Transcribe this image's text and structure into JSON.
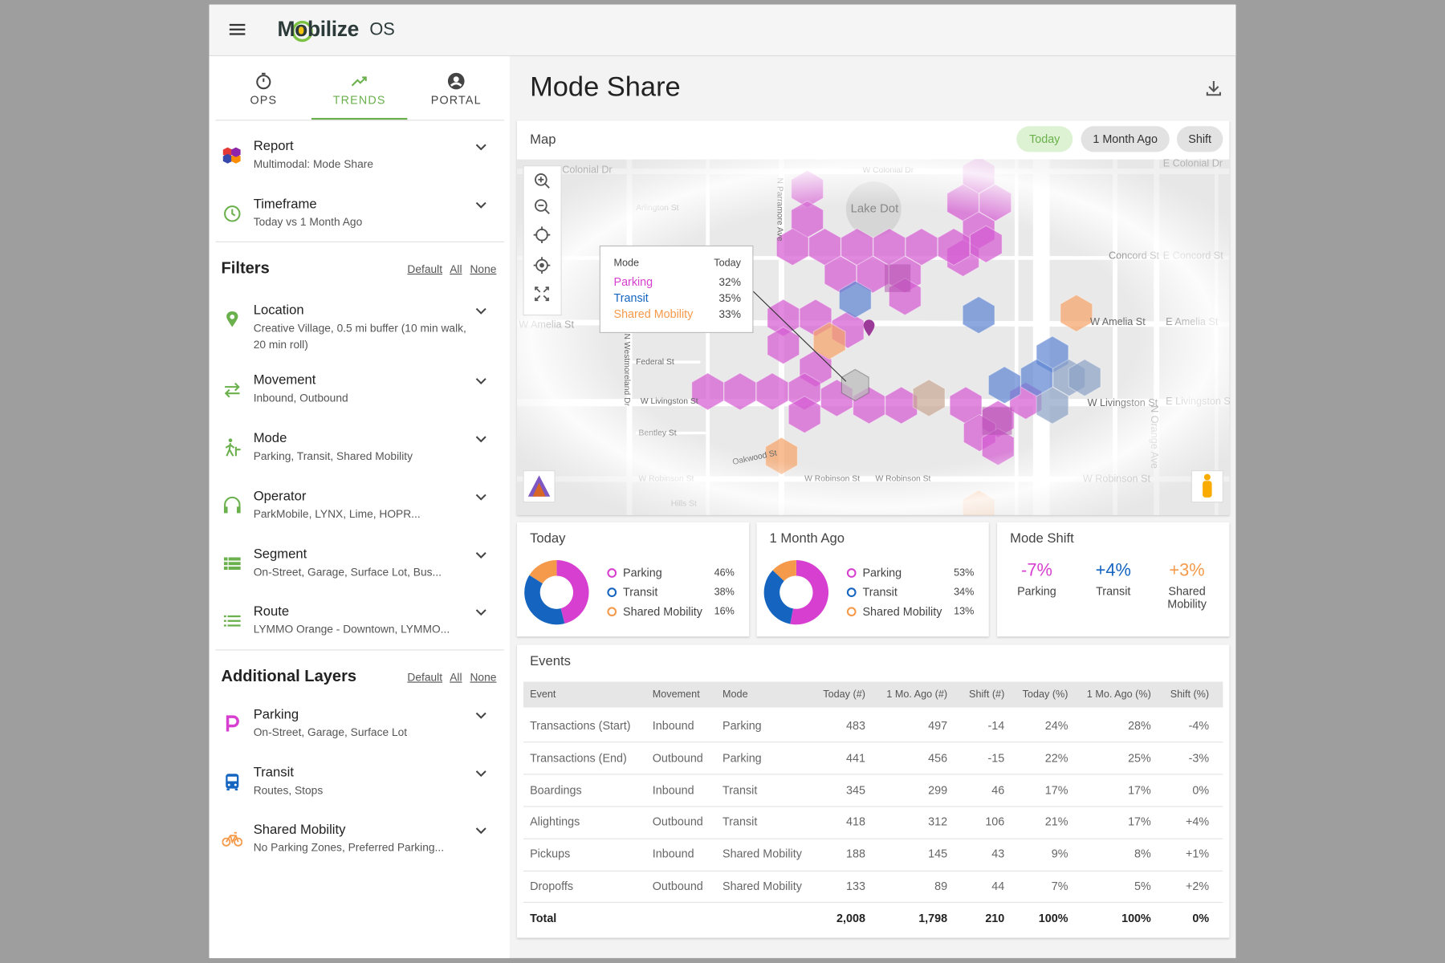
{
  "header": {
    "brand": "Mobilize",
    "suffix": "OS"
  },
  "tabs": [
    "OPS",
    "TRENDS",
    "PORTAL"
  ],
  "sidebar": {
    "report": [
      {
        "title": "Report",
        "subtitle": "Multimodal: Mode Share"
      },
      {
        "title": "Timeframe",
        "subtitle": "Today vs 1 Month Ago"
      }
    ],
    "filters": {
      "title": "Filters",
      "links": [
        "Default",
        "All",
        "None"
      ],
      "items": [
        {
          "title": "Location",
          "subtitle": "Creative Village, 0.5 mi buffer (10 min walk, 20 min roll)"
        },
        {
          "title": "Movement",
          "subtitle": "Inbound, Outbound"
        },
        {
          "title": "Mode",
          "subtitle": "Parking, Transit, Shared Mobility"
        },
        {
          "title": "Operator",
          "subtitle": "ParkMobile, LYNX, Lime, HOPR..."
        },
        {
          "title": "Segment",
          "subtitle": "On-Street, Garage, Surface Lot, Bus..."
        },
        {
          "title": "Route",
          "subtitle": "LYMMO Orange - Downtown, LYMMO..."
        }
      ]
    },
    "layers": {
      "title": "Additional Layers",
      "links": [
        "Default",
        "All",
        "None"
      ],
      "items": [
        {
          "title": "Parking",
          "subtitle": "On-Street, Garage, Surface Lot"
        },
        {
          "title": "Transit",
          "subtitle": "Routes, Stops"
        },
        {
          "title": "Shared Mobility",
          "subtitle": "No Parking Zones, Preferred Parking..."
        }
      ]
    }
  },
  "main": {
    "title": "Mode Share",
    "map": {
      "title": "Map",
      "chips": [
        "Today",
        "1 Month Ago",
        "Shift"
      ],
      "labels": [
        "Colonial Dr",
        "W Colonial Dr",
        "E Colonial Dr",
        "Arlington St",
        "Lake Dot",
        "Concord St",
        "E Concord St",
        "W Amelia St",
        "W Amelia St",
        "E Amelia St",
        "Federal St",
        "W Livingston St",
        "W Livingston St",
        "E Livingston St",
        "Bentley St",
        "Oakwood St",
        "W Robinson St",
        "W Robinson St",
        "W Robinson St",
        "W Robinson St",
        "Hills St",
        "N Parramore Ave",
        "N Westmoreland Dr",
        "N Orange Ave"
      ],
      "tooltip": {
        "headers": [
          "Mode",
          "Today"
        ],
        "rows": [
          {
            "mode": "Parking",
            "value": "32%",
            "color": "#d63fcf"
          },
          {
            "mode": "Transit",
            "value": "35%",
            "color": "#1565c0"
          },
          {
            "mode": "Shared Mobility",
            "value": "33%",
            "color": "#f59a4a"
          }
        ]
      }
    },
    "donuts": [
      {
        "title": "Today",
        "categories": [
          "Parking",
          "Transit",
          "Shared Mobility"
        ],
        "values": [
          46,
          38,
          16
        ],
        "value_labels": [
          "46%",
          "38%",
          "16%"
        ],
        "colors": [
          "#d63fcf",
          "#1565c0",
          "#f59a4a"
        ]
      },
      {
        "title": "1 Month Ago",
        "categories": [
          "Parking",
          "Transit",
          "Shared Mobility"
        ],
        "values": [
          53,
          34,
          13
        ],
        "value_labels": [
          "53%",
          "34%",
          "13%"
        ],
        "colors": [
          "#d63fcf",
          "#1565c0",
          "#f59a4a"
        ]
      }
    ],
    "shift": {
      "title": "Mode Shift",
      "items": [
        {
          "value": "-7%",
          "label": "Parking",
          "color": "#d63fcf"
        },
        {
          "value": "+4%",
          "label": "Transit",
          "color": "#1565c0"
        },
        {
          "value": "+3%",
          "label": "Shared Mobility",
          "color": "#f59a4a"
        }
      ]
    },
    "events": {
      "title": "Events",
      "columns": [
        "Event",
        "Movement",
        "Mode",
        "Today (#)",
        "1 Mo. Ago (#)",
        "Shift (#)",
        "Today (%)",
        "1 Mo. Ago (%)",
        "Shift (%)"
      ],
      "rows": [
        [
          "Transactions (Start)",
          "Inbound",
          "Parking",
          "483",
          "497",
          "-14",
          "24%",
          "28%",
          "-4%"
        ],
        [
          "Transactions (End)",
          "Outbound",
          "Parking",
          "441",
          "456",
          "-15",
          "22%",
          "25%",
          "-3%"
        ],
        [
          "Boardings",
          "Inbound",
          "Transit",
          "345",
          "299",
          "46",
          "17%",
          "17%",
          "0%"
        ],
        [
          "Alightings",
          "Outbound",
          "Transit",
          "418",
          "312",
          "106",
          "21%",
          "17%",
          "+4%"
        ],
        [
          "Pickups",
          "Inbound",
          "Shared Mobility",
          "188",
          "145",
          "43",
          "9%",
          "8%",
          "+1%"
        ],
        [
          "Dropoffs",
          "Outbound",
          "Shared Mobility",
          "133",
          "89",
          "44",
          "7%",
          "5%",
          "+2%"
        ]
      ],
      "total": {
        "label": "Total",
        "values": [
          "2,008",
          "1,798",
          "210",
          "100%",
          "100%",
          "0%"
        ]
      }
    }
  }
}
